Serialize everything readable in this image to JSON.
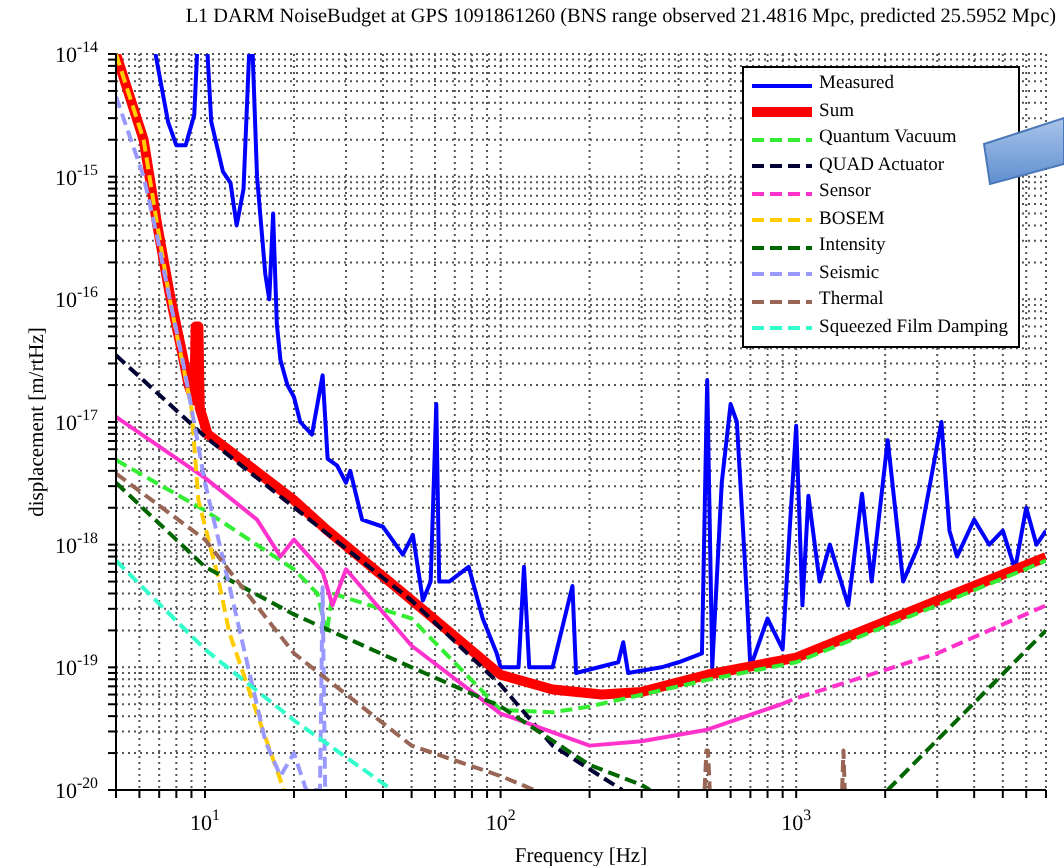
{
  "chart_data": {
    "type": "line",
    "title": "L1 DARM NoiseBudget at GPS 1091861260 (BNS range observed 21.4816 Mpc, predicted 25.5952 Mpc)",
    "xlabel": "Frequency [Hz]",
    "ylabel": "displacement [m/rtHz]",
    "log": "xy",
    "grid": true,
    "legend": "top right",
    "marker": "none",
    "line_style": "dashed",
    "xlim": [
      5,
      7000
    ],
    "xticks": [
      {
        "value": 5,
        "label": null
      },
      {
        "value": 6,
        "label": null
      },
      {
        "value": 7,
        "label": null
      },
      {
        "value": 8,
        "label": null
      },
      {
        "value": 9,
        "label": null
      },
      {
        "value": 10,
        "label": "10$^{1}$"
      },
      {
        "value": 20,
        "label": null
      },
      {
        "value": 30,
        "label": null
      },
      {
        "value": 40,
        "label": null
      },
      {
        "value": 50,
        "label": null
      },
      {
        "value": 60,
        "label": null
      },
      {
        "value": 70,
        "label": null
      },
      {
        "value": 80,
        "label": null
      },
      {
        "value": 90,
        "label": null
      },
      {
        "value": 100,
        "label": "10$^{2}$"
      },
      {
        "value": 200,
        "label": null
      },
      {
        "value": 300,
        "label": null
      },
      {
        "value": 400,
        "label": null
      },
      {
        "value": 500,
        "label": null
      },
      {
        "value": 600,
        "label": null
      },
      {
        "value": 700,
        "label": null
      },
      {
        "value": 800,
        "label": null
      },
      {
        "value": 900,
        "label": null
      },
      {
        "value": 1000,
        "label": "10$^{3}$"
      },
      {
        "value": 2000,
        "label": null
      },
      {
        "value": 3000,
        "label": null
      },
      {
        "value": 4000,
        "label": null
      },
      {
        "value": 5000,
        "label": null
      },
      {
        "value": 6000,
        "label": null
      },
      {
        "value": 7000,
        "label": null
      }
    ],
    "ylim": [
      1e-20,
      1e-14
    ],
    "yticks": [
      {
        "value": 1e-20,
        "label": "10$^{-20}$"
      },
      {
        "value": 2e-20,
        "label": null
      },
      {
        "value": 3e-20,
        "label": null
      },
      {
        "value": 4e-20,
        "label": null
      },
      {
        "value": 5e-20,
        "label": null
      },
      {
        "value": 6e-20,
        "label": null
      },
      {
        "value": 7e-20,
        "label": null
      },
      {
        "value": 8e-20,
        "label": null
      },
      {
        "value": 9e-20,
        "label": null
      },
      {
        "value": 1e-19,
        "label": "10$^{-19}$"
      },
      {
        "value": 2e-19,
        "label": null
      },
      {
        "value": 3e-19,
        "label": null
      },
      {
        "value": 4e-19,
        "label": null
      },
      {
        "value": 5e-19,
        "label": null
      },
      {
        "value": 6e-19,
        "label": null
      },
      {
        "value": 7e-19,
        "label": null
      },
      {
        "value": 8e-19,
        "label": null
      },
      {
        "value": 9e-19,
        "label": null
      },
      {
        "value": 1e-18,
        "label": "10$^{-18}$"
      },
      {
        "value": 2e-18,
        "label": null
      },
      {
        "value": 3e-18,
        "label": null
      },
      {
        "value": 4e-18,
        "label": null
      },
      {
        "value": 5e-18,
        "label": null
      },
      {
        "value": 6e-18,
        "label": null
      },
      {
        "value": 7e-18,
        "label": null
      },
      {
        "value": 8e-18,
        "label": null
      },
      {
        "value": 9e-18,
        "label": null
      },
      {
        "value": 1e-17,
        "label": "10$^{-17}$"
      },
      {
        "value": 2e-17,
        "label": null
      },
      {
        "value": 3e-17,
        "label": null
      },
      {
        "value": 4e-17,
        "label": null
      },
      {
        "value": 5e-17,
        "label": null
      },
      {
        "value": 6e-17,
        "label": null
      },
      {
        "value": 7e-17,
        "label": null
      },
      {
        "value": 8e-17,
        "label": null
      },
      {
        "value": 9e-17,
        "label": null
      },
      {
        "value": 1e-16,
        "label": "10$^{-16}$"
      },
      {
        "value": 2e-16,
        "label": null
      },
      {
        "value": 3e-16,
        "label": null
      },
      {
        "value": 4e-16,
        "label": null
      },
      {
        "value": 5e-16,
        "label": null
      },
      {
        "value": 6e-16,
        "label": null
      },
      {
        "value": 7e-16,
        "label": null
      },
      {
        "value": 8e-16,
        "label": null
      },
      {
        "value": 9e-16,
        "label": null
      },
      {
        "value": 1e-15,
        "label": "10$^{-15}$"
      },
      {
        "value": 2e-15,
        "label": null
      },
      {
        "value": 3e-15,
        "label": null
      },
      {
        "value": 4e-15,
        "label": null
      },
      {
        "value": 5e-15,
        "label": null
      },
      {
        "value": 6e-15,
        "label": null
      },
      {
        "value": 7e-15,
        "label": null
      },
      {
        "value": 8e-15,
        "label": null
      },
      {
        "value": 9e-15,
        "label": null
      },
      {
        "value": 1e-14,
        "label": "10$^{-14}$"
      }
    ],
    "series": [
      {
        "name": "Measured",
        "color": "#0000ff",
        "line_style": "solid",
        "x": [
          6.8,
          7.5,
          8.0,
          8.6,
          9.2,
          9.4,
          9.8,
          10.2,
          10.5,
          11.5,
          12.2,
          12.8,
          13.5,
          14.1,
          14.3,
          14.5,
          15,
          16,
          16.5,
          17,
          17.5,
          18,
          19,
          20,
          21,
          23,
          25,
          26,
          28,
          30,
          31,
          34,
          40,
          46.7,
          50.5,
          54.6,
          58,
          60.6,
          62,
          67,
          78,
          87,
          97,
          100,
          115,
          120,
          125,
          150,
          175,
          180,
          250,
          260,
          270,
          350,
          400,
          480,
          500,
          520,
          560,
          600,
          630,
          680,
          700,
          800,
          900,
          950,
          1000,
          1050,
          1100,
          1200,
          1300,
          1500,
          1670,
          1800,
          2040,
          2300,
          2600,
          3100,
          3300,
          3500,
          4000,
          4500,
          5000,
          5500,
          6000,
          6500,
          7000
        ],
        "values": [
          1e-14,
          2.8e-15,
          1.8e-15,
          1.8e-15,
          3.2e-15,
          1e-14,
          null,
          1e-14,
          2.8e-15,
          1.1e-15,
          8.9e-16,
          4e-16,
          7.9e-16,
          1e-14,
          null,
          1e-14,
          1e-15,
          1.6e-16,
          1e-16,
          5e-16,
          6.3e-17,
          3.2e-17,
          2e-17,
          1.6e-17,
          1e-17,
          7.9e-18,
          2.4e-17,
          5e-18,
          4.4e-18,
          3.2e-18,
          4e-18,
          1.6e-18,
          1.4e-18,
          8.3e-19,
          1.2e-18,
          3.5e-19,
          5e-19,
          1.4e-17,
          5e-19,
          5e-19,
          6.6e-19,
          2.5e-19,
          1.3e-19,
          1e-19,
          1e-19,
          6.6e-19,
          1e-19,
          1e-19,
          4.6e-19,
          9e-20,
          1.1e-19,
          1.6e-19,
          9e-20,
          1e-19,
          1.1e-19,
          1.3e-19,
          2.2e-17,
          1e-19,
          3.2e-18,
          1.4e-17,
          1e-17,
          4e-19,
          1e-19,
          2.5e-19,
          1.4e-19,
          1.3e-18,
          9.3e-18,
          3.2e-19,
          2.5e-18,
          5e-19,
          1e-18,
          3.2e-19,
          2.6e-18,
          5e-19,
          7.1e-18,
          5e-19,
          1e-18,
          1e-17,
          1.3e-18,
          8e-19,
          1.6e-18,
          1e-18,
          1.3e-18,
          6.3e-19,
          2e-18,
          1e-18,
          1.3e-18
        ]
      },
      {
        "name": "Sum",
        "color": "#ff0000",
        "line_style": "solid",
        "x": [
          5,
          6.2,
          6.9,
          7.6,
          8.4,
          8.8,
          9.2,
          9.3,
          9.5,
          9.6,
          10.2,
          20,
          26,
          47,
          100,
          150,
          220,
          300,
          500,
          1000,
          3000,
          7000
        ],
        "values": [
          1e-14,
          2e-15,
          4e-16,
          1.1e-16,
          3.5e-17,
          2e-17,
          1.5e-17,
          6e-17,
          6e-17,
          1.3e-17,
          8e-18,
          2.3e-18,
          1.3e-18,
          4e-19,
          8.7e-20,
          6.6e-20,
          6e-20,
          6.3e-20,
          8.7e-20,
          1.2e-19,
          3.5e-19,
          7.9e-19
        ]
      },
      {
        "name": "Quantum Vacuum",
        "color": "#33ee33",
        "x": [
          5,
          10,
          20,
          24,
          25.8,
          27,
          50,
          100,
          150,
          200,
          500,
          1000,
          3000,
          7000
        ],
        "values": [
          4.9e-18,
          1.9e-18,
          6.3e-19,
          4e-19,
          1.9e-19,
          4e-19,
          2.5e-19,
          4.5e-20,
          4.3e-20,
          4.8e-20,
          7.9e-20,
          1.1e-19,
          3.2e-19,
          7.4e-19
        ]
      },
      {
        "name": "QUAD Actuator",
        "color": "#000033",
        "x": [
          5,
          10,
          50,
          100,
          150,
          258
        ],
        "values": [
          3.5e-17,
          7.6e-18,
          3.5e-19,
          7.2e-20,
          2.3e-20,
          1e-20
        ]
      },
      {
        "name": "Sensor",
        "color": "#ff33cc",
        "x": [
          890,
          1000,
          3000,
          7000
        ],
        "values": [
          5e-20,
          5.6e-20,
          1.3e-19,
          3.2e-19
        ]
      },
      {
        "color": "#ff33cc",
        "line_style": "solid",
        "x": [
          5,
          10,
          15,
          18,
          20,
          25,
          27,
          30,
          50,
          100,
          200,
          300,
          500,
          890
        ],
        "values": [
          1.1e-17,
          3.5e-18,
          1.6e-18,
          8e-19,
          1.1e-18,
          6e-19,
          3.2e-19,
          6.3e-19,
          1.5e-19,
          4.2e-20,
          2.3e-20,
          2.5e-20,
          3.1e-20,
          5e-20
        ]
      },
      {
        "name": "BOSEM",
        "color": "#ffcc00",
        "x": [
          5,
          6.2,
          6.9,
          7.6,
          8.4,
          9,
          9.5,
          11,
          12.1,
          15,
          17.8,
          18.5
        ],
        "values": [
          1e-14,
          2e-15,
          4e-16,
          1e-16,
          3e-17,
          1.3e-17,
          2.3e-18,
          5.8e-19,
          1.9e-19,
          4.2e-20,
          1.3e-20,
          1e-20
        ]
      },
      {
        "name": "Intensity",
        "color": "#006600",
        "x": [
          5,
          10,
          20,
          50,
          100,
          200,
          300,
          320,
          1000,
          2040,
          7000
        ],
        "values": [
          3.2e-18,
          6.6e-19,
          2.7e-19,
          1e-19,
          4.8e-20,
          1.6e-20,
          1.1e-20,
          1e-20,
          null,
          1e-20,
          2e-19
        ]
      },
      {
        "name": "Seismic",
        "color": "#9999ff",
        "x": [
          5,
          6.2,
          6.9,
          7.6,
          8.4,
          9,
          10,
          12,
          14,
          16,
          18,
          20,
          22,
          24.5,
          25,
          25.5
        ],
        "values": [
          4.5e-15,
          1e-15,
          3.2e-16,
          1e-16,
          3.2e-17,
          1.3e-17,
          3.2e-18,
          5e-19,
          1e-19,
          2.5e-20,
          1.3e-20,
          2e-20,
          1e-20,
          1e-20,
          4.5e-19,
          1e-20
        ]
      },
      {
        "name": "Thermal",
        "color": "#996655",
        "x": [
          5,
          10,
          20,
          50,
          100,
          130,
          300,
          490,
          497,
          503,
          510,
          1000,
          1430,
          1445,
          1460
        ],
        "values": [
          3.8e-18,
          1.1e-18,
          1.3e-19,
          2.3e-20,
          1.3e-20,
          1e-20,
          null,
          1e-20,
          2.1e-20,
          2.1e-20,
          1e-20,
          null,
          1e-20,
          2.1e-20,
          1e-20
        ]
      },
      {
        "name": "Squeezed Film Damping",
        "color": "#33ffcc",
        "x": [
          5,
          10,
          20,
          43
        ],
        "values": [
          7.4e-19,
          1.4e-19,
          3.7e-20,
          1e-20
        ]
      }
    ]
  }
}
